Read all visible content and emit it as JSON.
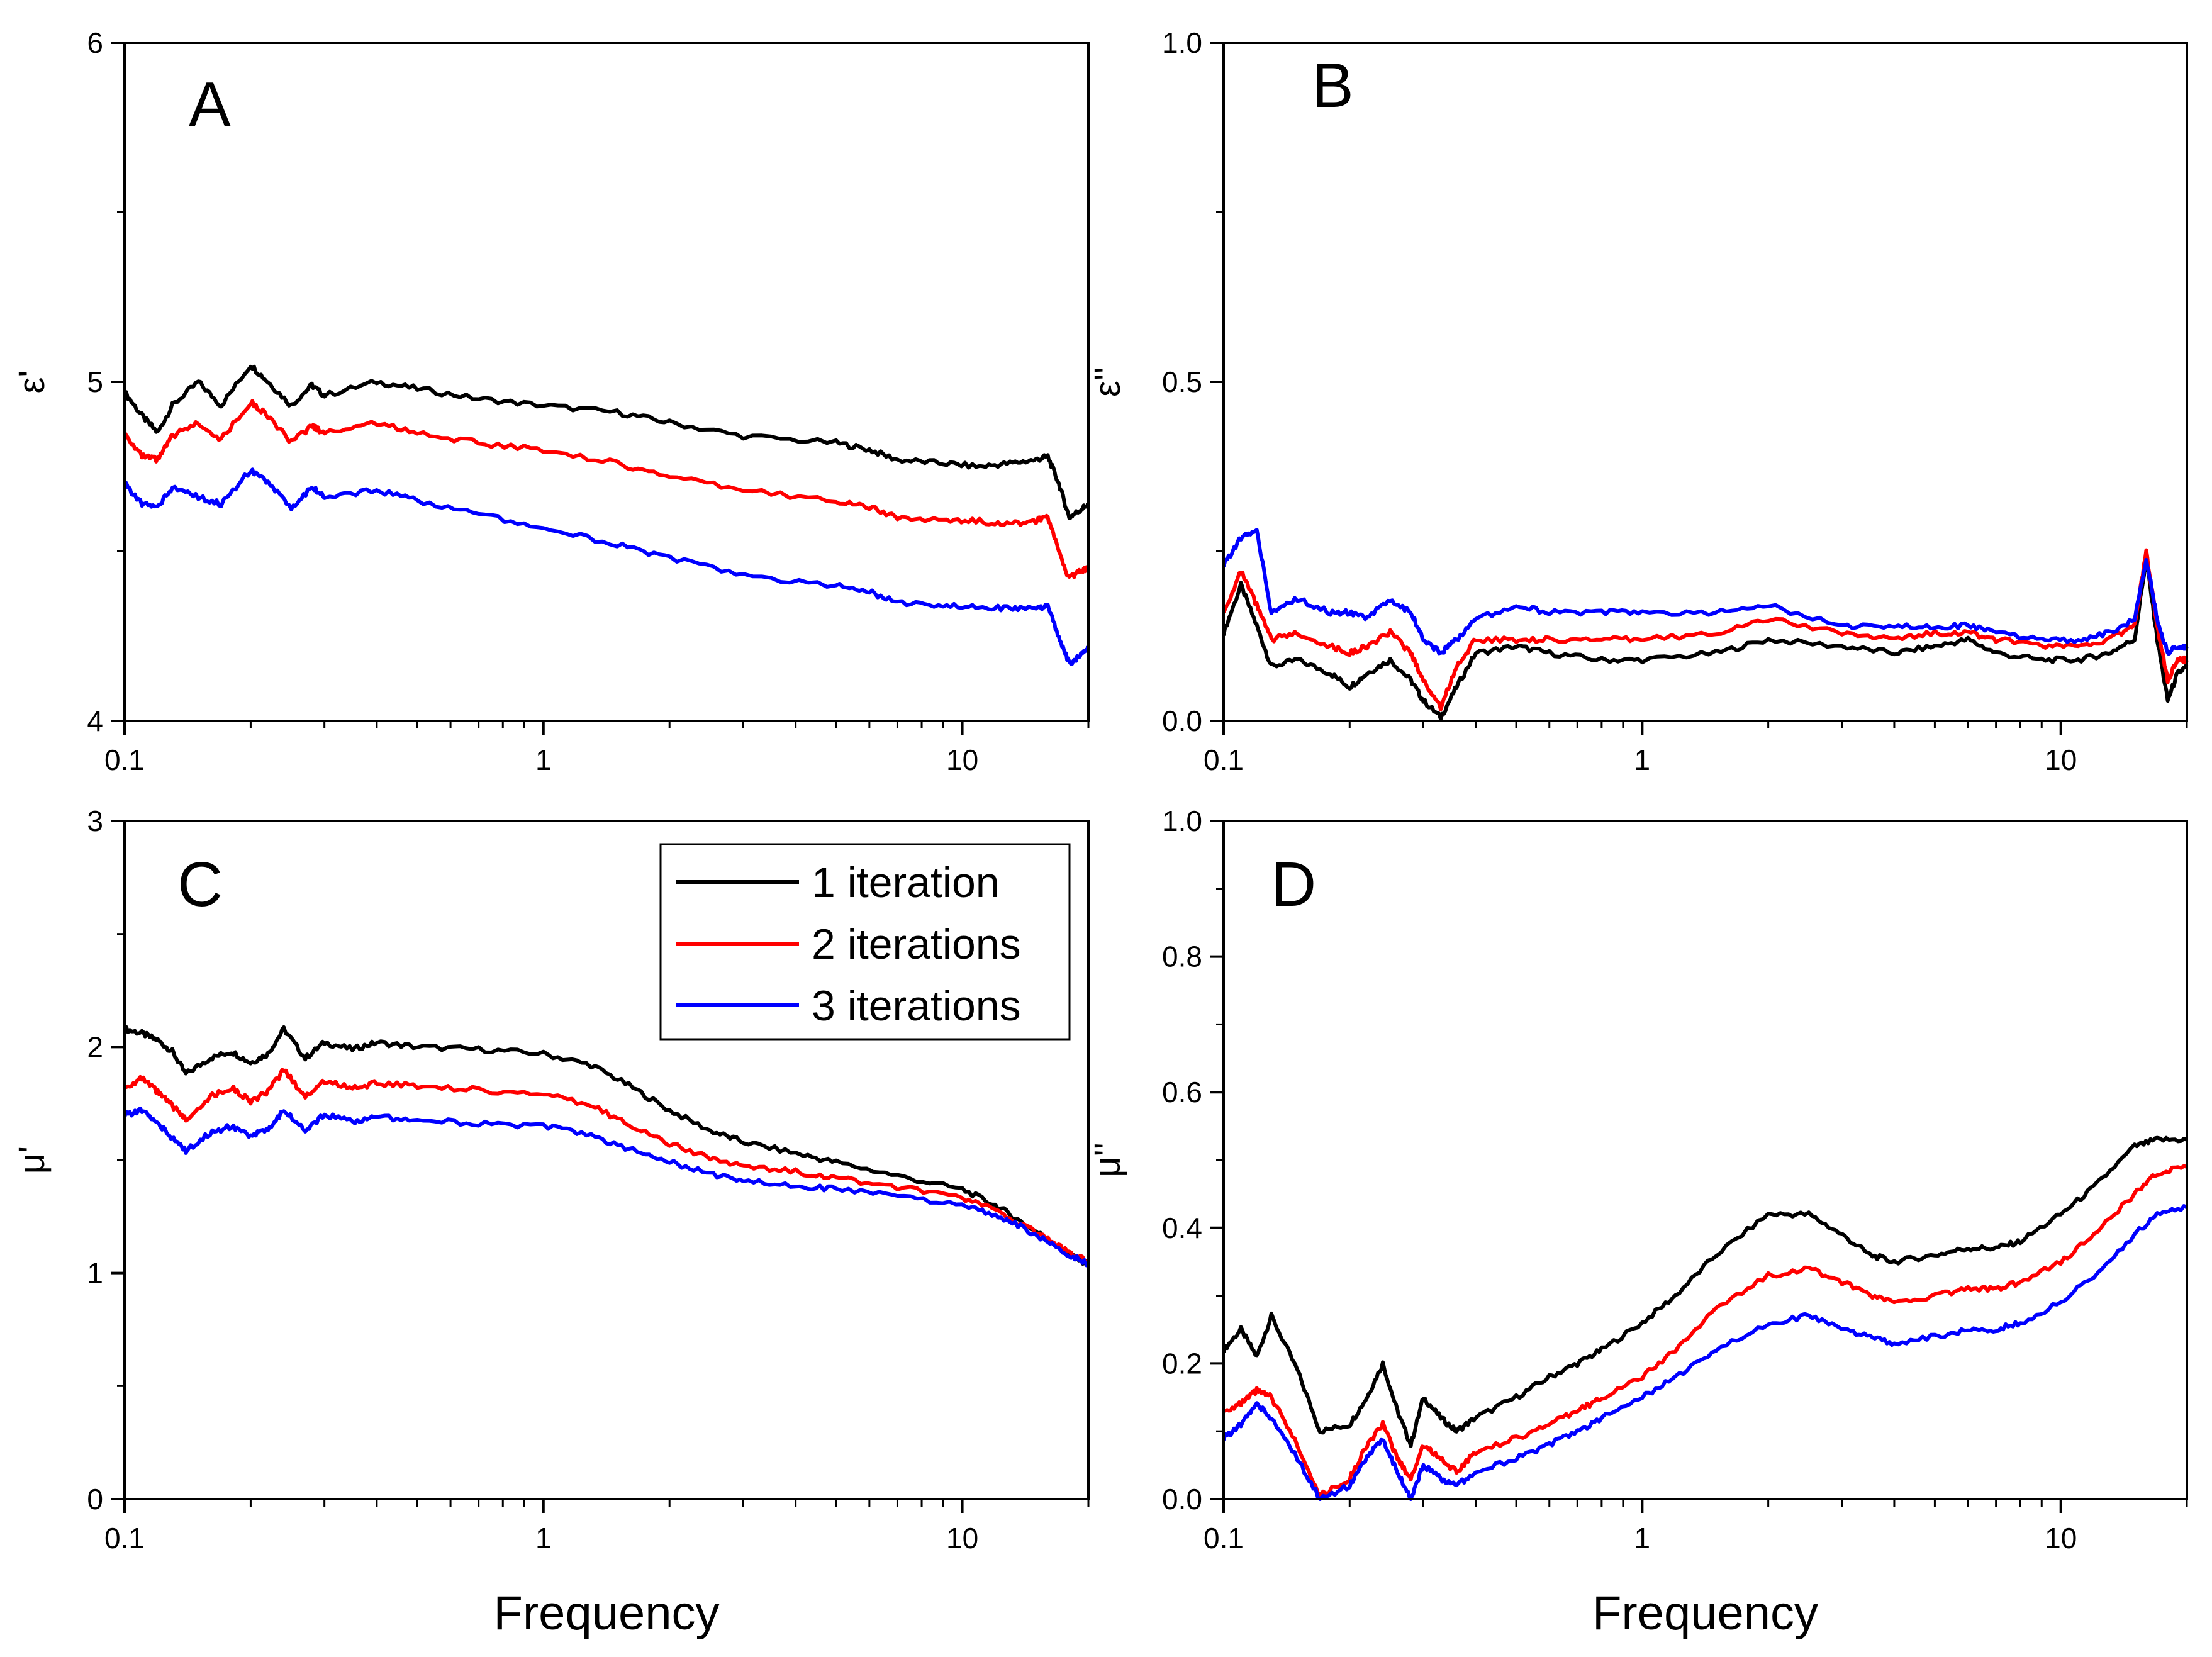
{
  "colors": {
    "series1": "#000000",
    "series2": "#ff0000",
    "series3": "#0000ff"
  },
  "legend": {
    "entries": [
      "1 iteration",
      "2 iterations",
      "3 iterations"
    ]
  },
  "chart_data": [
    {
      "type": "line",
      "panel": "A",
      "title": "",
      "xlabel": "",
      "ylabel": "ε'",
      "xscale": "log",
      "xlim": [
        0.1,
        20
      ],
      "ylim": [
        4,
        6
      ],
      "x_ticks": [
        0.1,
        1,
        10
      ],
      "x_tick_labels": [
        "0.1",
        "1",
        "10"
      ],
      "y_ticks": [
        4,
        5,
        6
      ],
      "y_tick_labels": [
        "4",
        "5",
        "6"
      ],
      "y_minor_ticks": [
        4.5,
        5.5
      ],
      "legend_position": "none",
      "series": [
        {
          "name": "1 iteration",
          "x": [
            0.1,
            0.11,
            0.12,
            0.13,
            0.15,
            0.17,
            0.2,
            0.22,
            0.25,
            0.28,
            0.3,
            0.4,
            0.5,
            0.7,
            1,
            1.5,
            2,
            3,
            5,
            6,
            7,
            9,
            11,
            13,
            15,
            16,
            17,
            18,
            19,
            20
          ],
          "y": [
            4.97,
            4.9,
            4.85,
            4.93,
            5.0,
            4.93,
            5.05,
            5.0,
            4.93,
            4.99,
            4.96,
            5.0,
            4.98,
            4.95,
            4.93,
            4.91,
            4.88,
            4.84,
            4.82,
            4.8,
            4.77,
            4.76,
            4.75,
            4.76,
            4.77,
            4.78,
            4.7,
            4.6,
            4.62,
            4.64
          ]
        },
        {
          "name": "2 iterations",
          "x": [
            0.1,
            0.11,
            0.12,
            0.13,
            0.15,
            0.17,
            0.2,
            0.22,
            0.25,
            0.28,
            0.3,
            0.4,
            0.5,
            0.7,
            1,
            1.5,
            2,
            3,
            5,
            6,
            7,
            9,
            11,
            13,
            15,
            16,
            17,
            18,
            19,
            20
          ],
          "y": [
            4.85,
            4.78,
            4.77,
            4.84,
            4.88,
            4.83,
            4.94,
            4.9,
            4.82,
            4.87,
            4.85,
            4.88,
            4.85,
            4.82,
            4.8,
            4.76,
            4.72,
            4.68,
            4.65,
            4.63,
            4.6,
            4.59,
            4.59,
            4.58,
            4.59,
            4.6,
            4.5,
            4.42,
            4.44,
            4.45
          ]
        },
        {
          "name": "3 iterations",
          "x": [
            0.1,
            0.11,
            0.12,
            0.13,
            0.15,
            0.17,
            0.2,
            0.22,
            0.25,
            0.28,
            0.3,
            0.4,
            0.5,
            0.7,
            1,
            1.5,
            2,
            3,
            5,
            6,
            7,
            9,
            11,
            13,
            15,
            16,
            17,
            18,
            19,
            20
          ],
          "y": [
            4.7,
            4.64,
            4.63,
            4.69,
            4.66,
            4.64,
            4.74,
            4.7,
            4.63,
            4.69,
            4.66,
            4.68,
            4.65,
            4.61,
            4.57,
            4.52,
            4.48,
            4.43,
            4.4,
            4.38,
            4.35,
            4.34,
            4.34,
            4.33,
            4.33,
            4.34,
            4.25,
            4.17,
            4.19,
            4.22
          ]
        }
      ]
    },
    {
      "type": "line",
      "panel": "B",
      "title": "",
      "xlabel": "",
      "ylabel": "ε''",
      "xscale": "log",
      "xlim": [
        0.1,
        20
      ],
      "ylim": [
        0,
        1.0
      ],
      "x_ticks": [
        0.1,
        1,
        10
      ],
      "x_tick_labels": [
        "0.1",
        "1",
        "10"
      ],
      "y_ticks": [
        0,
        0.5,
        1.0
      ],
      "y_tick_labels": [
        "0.0",
        "0.5",
        "1.0"
      ],
      "y_minor_ticks": [
        0.25,
        0.75
      ],
      "legend_position": "none",
      "series": [
        {
          "name": "1 iteration",
          "x": [
            0.1,
            0.11,
            0.12,
            0.13,
            0.15,
            0.18,
            0.2,
            0.22,
            0.25,
            0.28,
            0.3,
            0.33,
            0.36,
            0.4,
            0.5,
            0.6,
            0.8,
            1,
            1.5,
            2,
            3,
            4,
            5,
            6,
            7,
            9,
            11,
            13,
            15,
            16,
            17,
            18,
            19,
            20
          ],
          "y": [
            0.13,
            0.2,
            0.14,
            0.08,
            0.09,
            0.07,
            0.05,
            0.07,
            0.09,
            0.06,
            0.03,
            0.005,
            0.05,
            0.1,
            0.11,
            0.1,
            0.09,
            0.09,
            0.1,
            0.12,
            0.11,
            0.1,
            0.11,
            0.12,
            0.1,
            0.09,
            0.09,
            0.1,
            0.12,
            0.24,
            0.12,
            0.03,
            0.07,
            0.08
          ]
        },
        {
          "name": "2 iterations",
          "x": [
            0.1,
            0.11,
            0.12,
            0.13,
            0.15,
            0.18,
            0.2,
            0.22,
            0.25,
            0.28,
            0.3,
            0.33,
            0.36,
            0.4,
            0.5,
            0.6,
            0.8,
            1,
            1.5,
            2,
            3,
            4,
            5,
            6,
            7,
            9,
            11,
            13,
            15,
            16,
            17,
            18,
            19,
            20
          ],
          "y": [
            0.16,
            0.22,
            0.17,
            0.12,
            0.13,
            0.11,
            0.1,
            0.11,
            0.13,
            0.1,
            0.06,
            0.02,
            0.08,
            0.12,
            0.12,
            0.12,
            0.12,
            0.12,
            0.13,
            0.15,
            0.13,
            0.12,
            0.13,
            0.13,
            0.12,
            0.11,
            0.11,
            0.12,
            0.14,
            0.25,
            0.14,
            0.06,
            0.09,
            0.09
          ]
        },
        {
          "name": "3 iterations",
          "x": [
            0.1,
            0.11,
            0.12,
            0.13,
            0.15,
            0.18,
            0.2,
            0.22,
            0.25,
            0.28,
            0.3,
            0.33,
            0.36,
            0.4,
            0.5,
            0.6,
            0.8,
            1,
            1.5,
            2,
            3,
            4,
            5,
            6,
            7,
            9,
            11,
            13,
            15,
            16,
            17,
            18,
            19,
            20
          ],
          "y": [
            0.23,
            0.27,
            0.28,
            0.16,
            0.18,
            0.16,
            0.16,
            0.15,
            0.18,
            0.16,
            0.12,
            0.1,
            0.12,
            0.15,
            0.17,
            0.16,
            0.16,
            0.16,
            0.16,
            0.17,
            0.14,
            0.14,
            0.14,
            0.14,
            0.13,
            0.12,
            0.12,
            0.13,
            0.15,
            0.24,
            0.15,
            0.1,
            0.11,
            0.11
          ]
        }
      ]
    },
    {
      "type": "line",
      "panel": "C",
      "title": "",
      "xlabel": "Frequency",
      "ylabel": "μ'",
      "xscale": "log",
      "xlim": [
        0.1,
        20
      ],
      "ylim": [
        0,
        3
      ],
      "x_ticks": [
        0.1,
        1,
        10
      ],
      "x_tick_labels": [
        "0.1",
        "1",
        "10"
      ],
      "y_ticks": [
        0,
        1,
        2,
        3
      ],
      "y_tick_labels": [
        "0",
        "1",
        "2",
        "3"
      ],
      "y_minor_ticks": [
        0.5,
        1.5,
        2.5
      ],
      "legend_position": "top-right",
      "series": [
        {
          "name": "1 iteration",
          "x": [
            0.1,
            0.11,
            0.12,
            0.13,
            0.14,
            0.16,
            0.18,
            0.2,
            0.22,
            0.24,
            0.27,
            0.3,
            0.35,
            0.4,
            0.5,
            0.7,
            1,
            1.3,
            1.6,
            2,
            2.5,
            3,
            4,
            5,
            7,
            10,
            12,
            14,
            16,
            18,
            20
          ],
          "y": [
            2.08,
            2.06,
            2.03,
            1.98,
            1.88,
            1.95,
            1.98,
            1.93,
            1.97,
            2.08,
            1.95,
            2.02,
            1.99,
            2.02,
            2.0,
            1.99,
            1.97,
            1.92,
            1.83,
            1.72,
            1.63,
            1.58,
            1.53,
            1.49,
            1.43,
            1.37,
            1.3,
            1.22,
            1.15,
            1.08,
            1.04
          ]
        },
        {
          "name": "2 iterations",
          "x": [
            0.1,
            0.11,
            0.12,
            0.13,
            0.14,
            0.16,
            0.18,
            0.2,
            0.22,
            0.24,
            0.27,
            0.3,
            0.35,
            0.4,
            0.5,
            0.7,
            1,
            1.3,
            1.6,
            2,
            2.5,
            3,
            4,
            5,
            7,
            10,
            12,
            14,
            16,
            18,
            20
          ],
          "y": [
            1.82,
            1.86,
            1.8,
            1.74,
            1.68,
            1.78,
            1.82,
            1.76,
            1.8,
            1.9,
            1.78,
            1.85,
            1.82,
            1.84,
            1.83,
            1.81,
            1.79,
            1.74,
            1.66,
            1.57,
            1.51,
            1.47,
            1.45,
            1.42,
            1.38,
            1.33,
            1.28,
            1.21,
            1.15,
            1.09,
            1.05
          ]
        },
        {
          "name": "3 iterations",
          "x": [
            0.1,
            0.11,
            0.12,
            0.13,
            0.14,
            0.16,
            0.18,
            0.2,
            0.22,
            0.24,
            0.27,
            0.3,
            0.35,
            0.4,
            0.5,
            0.7,
            1,
            1.3,
            1.6,
            2,
            2.5,
            3,
            4,
            5,
            7,
            10,
            12,
            14,
            16,
            18,
            20
          ],
          "y": [
            1.7,
            1.72,
            1.66,
            1.6,
            1.54,
            1.62,
            1.65,
            1.6,
            1.64,
            1.72,
            1.63,
            1.7,
            1.67,
            1.69,
            1.68,
            1.66,
            1.65,
            1.61,
            1.55,
            1.49,
            1.44,
            1.41,
            1.39,
            1.37,
            1.34,
            1.3,
            1.26,
            1.2,
            1.14,
            1.08,
            1.04
          ]
        }
      ]
    },
    {
      "type": "line",
      "panel": "D",
      "title": "",
      "xlabel": "Frequency",
      "ylabel": "μ''",
      "xscale": "log",
      "xlim": [
        0.1,
        20
      ],
      "ylim": [
        0,
        1.0
      ],
      "x_ticks": [
        0.1,
        1,
        10
      ],
      "x_tick_labels": [
        "0.1",
        "1",
        "10"
      ],
      "y_ticks": [
        0,
        0.2,
        0.4,
        0.6,
        0.8,
        1.0
      ],
      "y_tick_labels": [
        "0.0",
        "0.2",
        "0.4",
        "0.6",
        "0.8",
        "1.0"
      ],
      "y_minor_ticks": [
        0.1,
        0.3,
        0.5,
        0.7,
        0.9
      ],
      "legend_position": "none",
      "series": [
        {
          "name": "1 iteration",
          "x": [
            0.1,
            0.11,
            0.12,
            0.13,
            0.15,
            0.17,
            0.2,
            0.22,
            0.24,
            0.26,
            0.28,
            0.3,
            0.33,
            0.36,
            0.4,
            0.5,
            0.6,
            0.7,
            0.8,
            1,
            1.2,
            1.5,
            2,
            2.5,
            3,
            3.5,
            4,
            5,
            6,
            7,
            8,
            10,
            12,
            15,
            17,
            20
          ],
          "y": [
            0.22,
            0.25,
            0.21,
            0.27,
            0.19,
            0.1,
            0.11,
            0.15,
            0.2,
            0.13,
            0.08,
            0.15,
            0.12,
            0.1,
            0.12,
            0.15,
            0.18,
            0.2,
            0.22,
            0.26,
            0.3,
            0.36,
            0.42,
            0.42,
            0.39,
            0.36,
            0.35,
            0.36,
            0.37,
            0.37,
            0.38,
            0.42,
            0.46,
            0.52,
            0.53,
            0.53
          ]
        },
        {
          "name": "2 iterations",
          "x": [
            0.1,
            0.11,
            0.12,
            0.13,
            0.15,
            0.17,
            0.2,
            0.22,
            0.24,
            0.26,
            0.28,
            0.3,
            0.33,
            0.36,
            0.4,
            0.5,
            0.6,
            0.7,
            0.8,
            1,
            1.2,
            1.5,
            2,
            2.5,
            3,
            3.5,
            4,
            5,
            6,
            7,
            8,
            10,
            12,
            15,
            17,
            20
          ],
          "y": [
            0.13,
            0.14,
            0.16,
            0.15,
            0.08,
            0.005,
            0.03,
            0.08,
            0.11,
            0.06,
            0.03,
            0.08,
            0.06,
            0.04,
            0.07,
            0.09,
            0.11,
            0.13,
            0.15,
            0.18,
            0.22,
            0.28,
            0.33,
            0.34,
            0.32,
            0.3,
            0.29,
            0.3,
            0.31,
            0.31,
            0.32,
            0.35,
            0.39,
            0.45,
            0.48,
            0.49
          ]
        },
        {
          "name": "3 iterations",
          "x": [
            0.1,
            0.11,
            0.12,
            0.13,
            0.15,
            0.17,
            0.2,
            0.22,
            0.24,
            0.26,
            0.28,
            0.3,
            0.33,
            0.36,
            0.4,
            0.5,
            0.6,
            0.7,
            0.8,
            1,
            1.2,
            1.5,
            2,
            2.5,
            3,
            3.5,
            4,
            5,
            6,
            7,
            8,
            10,
            12,
            15,
            17,
            20
          ],
          "y": [
            0.09,
            0.11,
            0.14,
            0.12,
            0.06,
            0.0,
            0.02,
            0.06,
            0.09,
            0.04,
            0.0,
            0.05,
            0.03,
            0.02,
            0.04,
            0.06,
            0.08,
            0.1,
            0.12,
            0.15,
            0.18,
            0.22,
            0.26,
            0.27,
            0.25,
            0.24,
            0.23,
            0.24,
            0.25,
            0.25,
            0.26,
            0.29,
            0.33,
            0.39,
            0.42,
            0.43
          ]
        }
      ]
    }
  ]
}
